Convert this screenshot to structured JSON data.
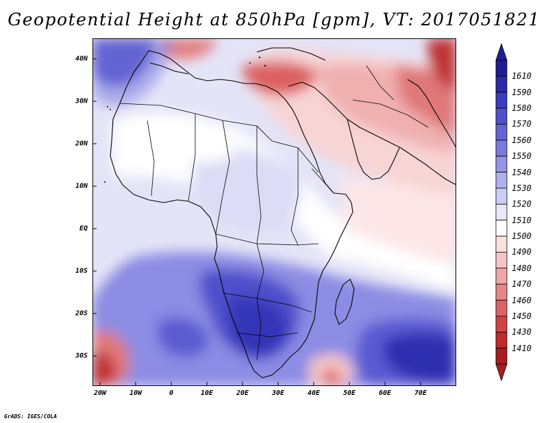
{
  "title": "Geopotential Height at 850hPa [gpm], VT: 2017051821",
  "footer": "GrADS: IGES/COLA",
  "latitude_labels": [
    "40N",
    "30N",
    "20N",
    "10N",
    "EQ",
    "10S",
    "20S",
    "30S"
  ],
  "longitude_labels": [
    "20W",
    "10W",
    "0",
    "10E",
    "20E",
    "30E",
    "40E",
    "50E",
    "60E",
    "70E"
  ],
  "colorbar": {
    "labels": [
      "1610",
      "1590",
      "1580",
      "1570",
      "1560",
      "1550",
      "1540",
      "1530",
      "1520",
      "1510",
      "1500",
      "1490",
      "1480",
      "1470",
      "1460",
      "1450",
      "1430",
      "1410"
    ],
    "colors": [
      "#1e1e96",
      "#2a2aa8",
      "#3b3bbe",
      "#5050cc",
      "#6464d6",
      "#7a7ade",
      "#9494e6",
      "#b0b0ee",
      "#cccdf6",
      "#e8e8fb",
      "#ffffff",
      "#fbe0e0",
      "#f5c4c4",
      "#eea8a8",
      "#e68888",
      "#dc6464",
      "#d04444",
      "#c02a2a",
      "#a81e1e"
    ]
  }
}
